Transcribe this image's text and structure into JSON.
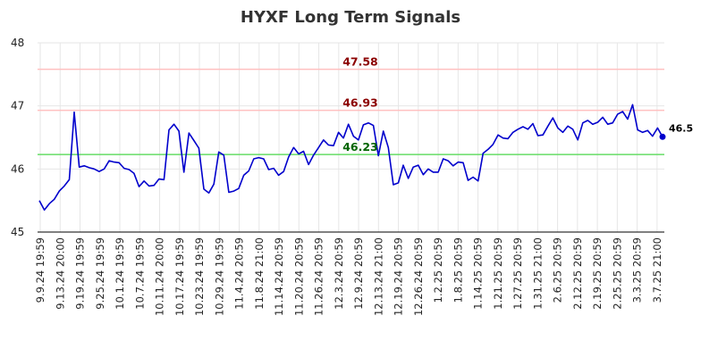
{
  "chart_data": {
    "type": "line",
    "title": "HYXF Long Term Signals",
    "ylim": [
      45,
      48
    ],
    "yticks": [
      "45",
      "46",
      "47",
      "48"
    ],
    "xticks": [
      "9.9.24 19:59",
      "9.13.24 20:00",
      "9.19.24 19:59",
      "9.25.24 19:59",
      "10.1.24 19:59",
      "10.7.24 19:59",
      "10.11.24 20:00",
      "10.17.24 19:59",
      "10.23.24 19:59",
      "10.29.24 19:59",
      "11.4.24 20:59",
      "11.8.24 21:00",
      "11.14.24 20:59",
      "11.20.24 20:59",
      "11.26.24 20:59",
      "12.3.24 20:59",
      "12.9.24 20:59",
      "12.13.24 21:00",
      "12.19.24 20:59",
      "12.26.24 20:59",
      "1.2.25 20:59",
      "1.8.25 20:59",
      "1.14.25 20:59",
      "1.21.25 20:59",
      "1.27.25 20:59",
      "1.31.25 21:00",
      "2.6.25 20:59",
      "2.12.25 20:59",
      "2.19.25 20:59",
      "2.25.25 20:59",
      "3.3.25 20:59",
      "3.7.25 21:00"
    ],
    "grid": true,
    "series": [
      {
        "color": "#0000cc",
        "values": [
          45.5,
          45.35,
          45.45,
          45.52,
          45.65,
          45.73,
          45.83,
          46.9,
          46.03,
          46.05,
          46.02,
          46.0,
          45.96,
          46.0,
          46.13,
          46.11,
          46.1,
          46.01,
          45.99,
          45.93,
          45.72,
          45.81,
          45.73,
          45.74,
          45.84,
          45.83,
          46.62,
          46.71,
          46.6,
          45.95,
          46.57,
          46.45,
          46.33,
          45.68,
          45.62,
          45.76,
          46.27,
          46.22,
          45.63,
          45.65,
          45.69,
          45.9,
          45.97,
          46.16,
          46.18,
          46.16,
          45.99,
          46.01,
          45.9,
          45.96,
          46.19,
          46.34,
          46.24,
          46.28,
          46.07,
          46.22,
          46.34,
          46.46,
          46.38,
          46.37,
          46.58,
          46.49,
          46.71,
          46.52,
          46.46,
          46.7,
          46.73,
          46.69,
          46.21,
          46.6,
          46.34,
          45.75,
          45.78,
          46.06,
          45.85,
          46.03,
          46.06,
          45.91,
          46.0,
          45.95,
          45.95,
          46.16,
          46.13,
          46.05,
          46.11,
          46.1,
          45.82,
          45.87,
          45.81,
          46.25,
          46.31,
          46.39,
          46.54,
          46.49,
          46.48,
          46.58,
          46.63,
          46.67,
          46.63,
          46.72,
          46.53,
          46.54,
          46.68,
          46.81,
          46.65,
          46.58,
          46.68,
          46.63,
          46.46,
          46.73,
          46.77,
          46.71,
          46.74,
          46.82,
          46.71,
          46.73,
          46.87,
          46.91,
          46.79,
          47.02,
          46.62,
          46.58,
          46.61,
          46.52,
          46.65,
          46.51
        ]
      }
    ],
    "levels": [
      {
        "value": 47.58,
        "label": "47.58",
        "line_color": "#ffc0c0",
        "text_color": "#8b0000"
      },
      {
        "value": 46.93,
        "label": "46.93",
        "line_color": "#ffc0c0",
        "text_color": "#8b0000"
      },
      {
        "value": 46.23,
        "label": "46.23",
        "line_color": "#66dd66",
        "text_color": "#006400"
      }
    ],
    "last_value_label": "46.5"
  }
}
